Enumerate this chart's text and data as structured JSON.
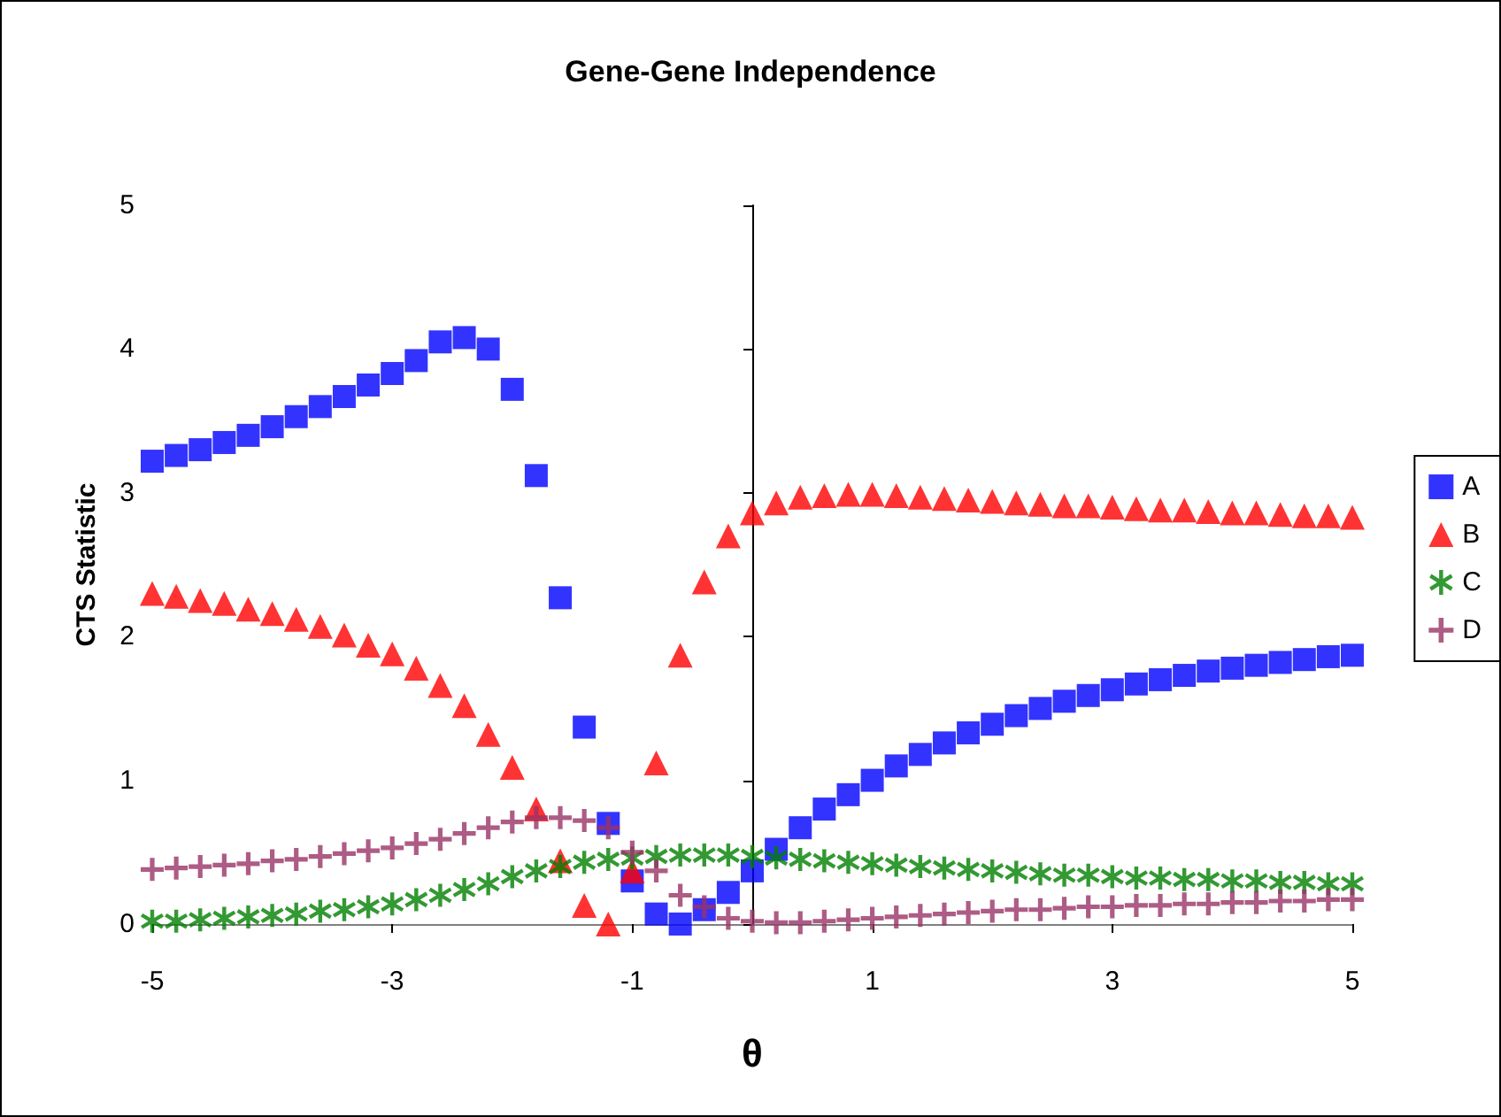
{
  "chart_data": {
    "type": "scatter",
    "title": "Gene-Gene Independence",
    "xlabel": "θ",
    "ylabel": "CTS Statistic",
    "x": [
      -5,
      -4.8,
      -4.6,
      -4.4,
      -4.2,
      -4,
      -3.8,
      -3.6,
      -3.4,
      -3.2,
      -3,
      -2.8,
      -2.6,
      -2.4,
      -2.2,
      -2,
      -1.8,
      -1.6,
      -1.4,
      -1.2,
      -1,
      -0.8,
      -0.6,
      -0.4,
      -0.2,
      0,
      0.2,
      0.4,
      0.6,
      0.8,
      1,
      1.2,
      1.4,
      1.6,
      1.8,
      2,
      2.2,
      2.4,
      2.6,
      2.8,
      3,
      3.2,
      3.4,
      3.6,
      3.8,
      4,
      4.2,
      4.4,
      4.6,
      4.8,
      5
    ],
    "series": [
      {
        "name": "A",
        "color": "#0000ff",
        "marker": "square",
        "values": [
          3.22,
          3.26,
          3.3,
          3.35,
          3.4,
          3.46,
          3.53,
          3.6,
          3.67,
          3.75,
          3.83,
          3.92,
          4.05,
          4.08,
          4.0,
          3.72,
          3.12,
          2.27,
          1.37,
          0.7,
          0.3,
          0.07,
          0.0,
          0.1,
          0.22,
          0.37,
          0.52,
          0.67,
          0.8,
          0.9,
          1.0,
          1.1,
          1.18,
          1.26,
          1.33,
          1.39,
          1.45,
          1.5,
          1.55,
          1.59,
          1.63,
          1.67,
          1.7,
          1.73,
          1.76,
          1.78,
          1.8,
          1.82,
          1.84,
          1.86,
          1.87
        ]
      },
      {
        "name": "B",
        "color": "#ff0000",
        "marker": "triangle",
        "values": [
          2.3,
          2.28,
          2.25,
          2.23,
          2.19,
          2.16,
          2.12,
          2.07,
          2.01,
          1.94,
          1.88,
          1.78,
          1.66,
          1.52,
          1.32,
          1.09,
          0.8,
          0.44,
          0.13,
          0.0,
          0.37,
          1.12,
          1.87,
          2.38,
          2.7,
          2.86,
          2.93,
          2.97,
          2.98,
          2.99,
          2.99,
          2.98,
          2.97,
          2.96,
          2.95,
          2.94,
          2.93,
          2.92,
          2.91,
          2.91,
          2.9,
          2.89,
          2.88,
          2.88,
          2.87,
          2.86,
          2.86,
          2.85,
          2.84,
          2.84,
          2.83
        ]
      },
      {
        "name": "C",
        "color": "#008000",
        "marker": "star",
        "values": [
          0.02,
          0.02,
          0.03,
          0.04,
          0.05,
          0.06,
          0.07,
          0.09,
          0.1,
          0.12,
          0.14,
          0.17,
          0.2,
          0.24,
          0.28,
          0.33,
          0.37,
          0.4,
          0.43,
          0.45,
          0.46,
          0.47,
          0.48,
          0.48,
          0.48,
          0.47,
          0.46,
          0.45,
          0.44,
          0.43,
          0.42,
          0.41,
          0.4,
          0.39,
          0.38,
          0.37,
          0.36,
          0.35,
          0.34,
          0.34,
          0.33,
          0.32,
          0.32,
          0.31,
          0.31,
          0.3,
          0.3,
          0.29,
          0.29,
          0.28,
          0.28
        ]
      },
      {
        "name": "D",
        "color": "#993366",
        "marker": "cross",
        "values": [
          0.38,
          0.39,
          0.4,
          0.41,
          0.42,
          0.44,
          0.45,
          0.47,
          0.49,
          0.51,
          0.53,
          0.56,
          0.59,
          0.63,
          0.67,
          0.71,
          0.74,
          0.74,
          0.72,
          0.67,
          0.5,
          0.37,
          0.2,
          0.12,
          0.04,
          0.02,
          0.01,
          0.01,
          0.02,
          0.03,
          0.04,
          0.05,
          0.06,
          0.07,
          0.08,
          0.09,
          0.1,
          0.1,
          0.11,
          0.12,
          0.12,
          0.13,
          0.13,
          0.14,
          0.14,
          0.15,
          0.15,
          0.16,
          0.16,
          0.17,
          0.17
        ]
      }
    ],
    "xlim": [
      -5,
      5
    ],
    "xticks": [
      -5,
      -3,
      -1,
      1,
      3,
      5
    ],
    "ylim": [
      0,
      5
    ],
    "yticks": [
      0,
      1,
      2,
      3,
      4,
      5
    ],
    "grid": false,
    "legend": "right"
  }
}
